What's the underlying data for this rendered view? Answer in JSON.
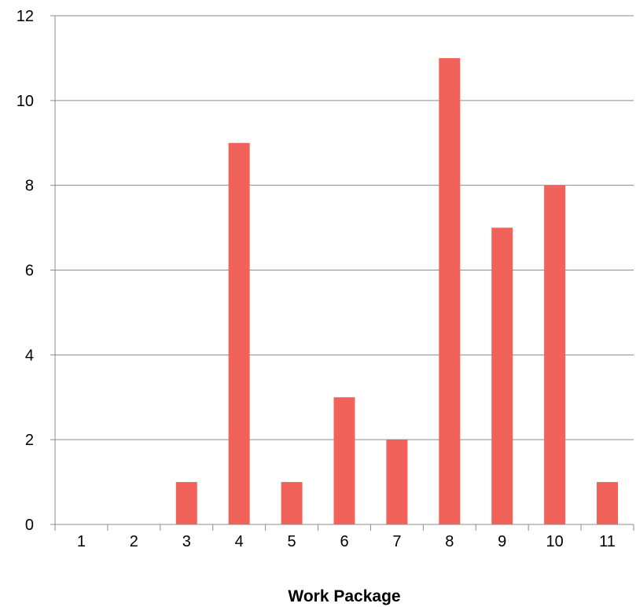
{
  "chart_data": {
    "type": "bar",
    "title": "",
    "xlabel": "Work Package",
    "ylabel": "",
    "categories": [
      "1",
      "2",
      "3",
      "4",
      "5",
      "6",
      "7",
      "8",
      "9",
      "10",
      "11"
    ],
    "values": [
      0,
      0,
      1,
      9,
      1,
      3,
      2,
      11,
      7,
      8,
      1
    ],
    "ylim": [
      0,
      12
    ],
    "yticks": [
      0,
      2,
      4,
      6,
      8,
      10,
      12
    ],
    "ytick_labels": [
      "0",
      "2",
      "4",
      "6",
      "8",
      "10",
      "12"
    ],
    "grid": true,
    "legend": "none",
    "colors": {
      "bar": "#F0625A",
      "grid": "#8C8C8C"
    }
  }
}
